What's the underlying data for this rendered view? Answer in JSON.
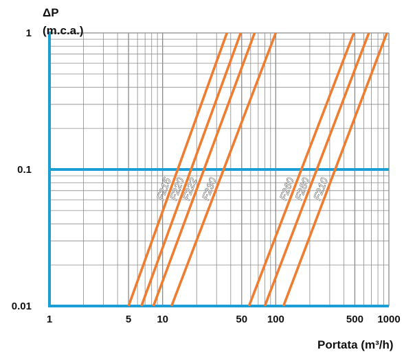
{
  "chart_data": {
    "type": "line",
    "title": "",
    "ylabel_lines": [
      "ΔP",
      "(m.c.a.)"
    ],
    "xlabel": "Portata (m³/h)",
    "x_scale": "log",
    "y_scale": "log",
    "xlim": [
      1,
      1000
    ],
    "ylim": [
      0.01,
      1
    ],
    "x_ticks": [
      {
        "value": 1,
        "label": "1"
      },
      {
        "value": 5,
        "label": "5"
      },
      {
        "value": 10,
        "label": "10"
      },
      {
        "value": 50,
        "label": "50"
      },
      {
        "value": 100,
        "label": "100"
      },
      {
        "value": 500,
        "label": "500"
      },
      {
        "value": 1000,
        "label": "1000"
      }
    ],
    "y_ticks": [
      {
        "value": 1,
        "label": "1"
      },
      {
        "value": 0.1,
        "label": "0.1"
      },
      {
        "value": 0.01,
        "label": "0.01"
      }
    ],
    "grid": true,
    "colors": {
      "series": "#ee7d31",
      "axis": "#1b9ed6",
      "grid": "#8a8a8a"
    },
    "series": [
      {
        "name": "F215",
        "x": [
          5,
          37
        ],
        "y": [
          0.01,
          1
        ]
      },
      {
        "name": "F220",
        "x": [
          6.5,
          49
        ],
        "y": [
          0.01,
          1
        ]
      },
      {
        "name": "F222",
        "x": [
          8.3,
          65
        ],
        "y": [
          0.01,
          1
        ]
      },
      {
        "name": "F230",
        "x": [
          12,
          100
        ],
        "y": [
          0.01,
          1
        ]
      },
      {
        "name": "F260",
        "x": [
          58,
          490
        ],
        "y": [
          0.01,
          1
        ]
      },
      {
        "name": "F280",
        "x": [
          80,
          665
        ],
        "y": [
          0.01,
          1
        ]
      },
      {
        "name": "F210",
        "x": [
          117,
          960
        ],
        "y": [
          0.01,
          1
        ]
      }
    ]
  }
}
